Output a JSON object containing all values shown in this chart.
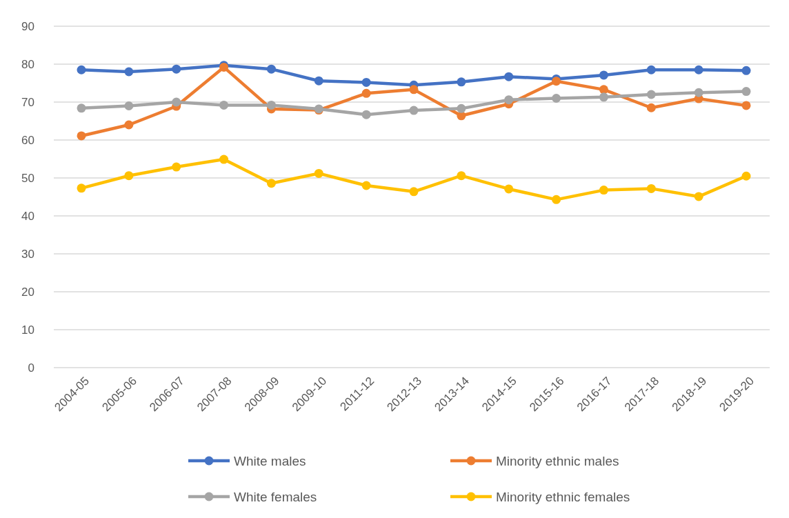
{
  "chart_data": {
    "type": "line",
    "categories": [
      "2004-05",
      "2005-06",
      "2006-07",
      "2007-08",
      "2008-09",
      "2009-10",
      "2011-12",
      "2012-13",
      "2013-14",
      "2014-15",
      "2015-16",
      "2016-17",
      "2017-18",
      "2018-19",
      "2019-20"
    ],
    "series": [
      {
        "name": "White males",
        "color": "#4472c4",
        "values": [
          78.5,
          78,
          78.7,
          79.7,
          78.7,
          75.6,
          75.2,
          74.5,
          75.3,
          76.7,
          76.1,
          77.1,
          78.5,
          78.5,
          78.3
        ]
      },
      {
        "name": "Minority ethnic males",
        "color": "#ed7d31",
        "values": [
          61.1,
          64,
          68.9,
          79.2,
          68.2,
          67.9,
          72.3,
          73.3,
          66.4,
          69.5,
          75.5,
          73.3,
          68.5,
          70.9,
          69.1
        ]
      },
      {
        "name": "White females",
        "color": "#a5a5a5",
        "values": [
          68.4,
          69,
          70,
          69.2,
          69.2,
          68.2,
          66.7,
          67.8,
          68.3,
          70.6,
          71,
          71.3,
          72,
          72.5,
          72.8
        ]
      },
      {
        "name": "Minority ethnic females",
        "color": "#ffc000",
        "values": [
          47.3,
          50.6,
          52.9,
          54.9,
          48.6,
          51.2,
          48,
          46.4,
          50.6,
          47.1,
          44.3,
          46.8,
          47.2,
          45.1,
          50.5
        ]
      }
    ],
    "ylim": [
      0,
      90
    ],
    "yticks": [
      0,
      10,
      20,
      30,
      40,
      50,
      60,
      70,
      80,
      90
    ],
    "grid": "y",
    "legend": "bottom",
    "marker": "circle",
    "line_style": "solid"
  }
}
